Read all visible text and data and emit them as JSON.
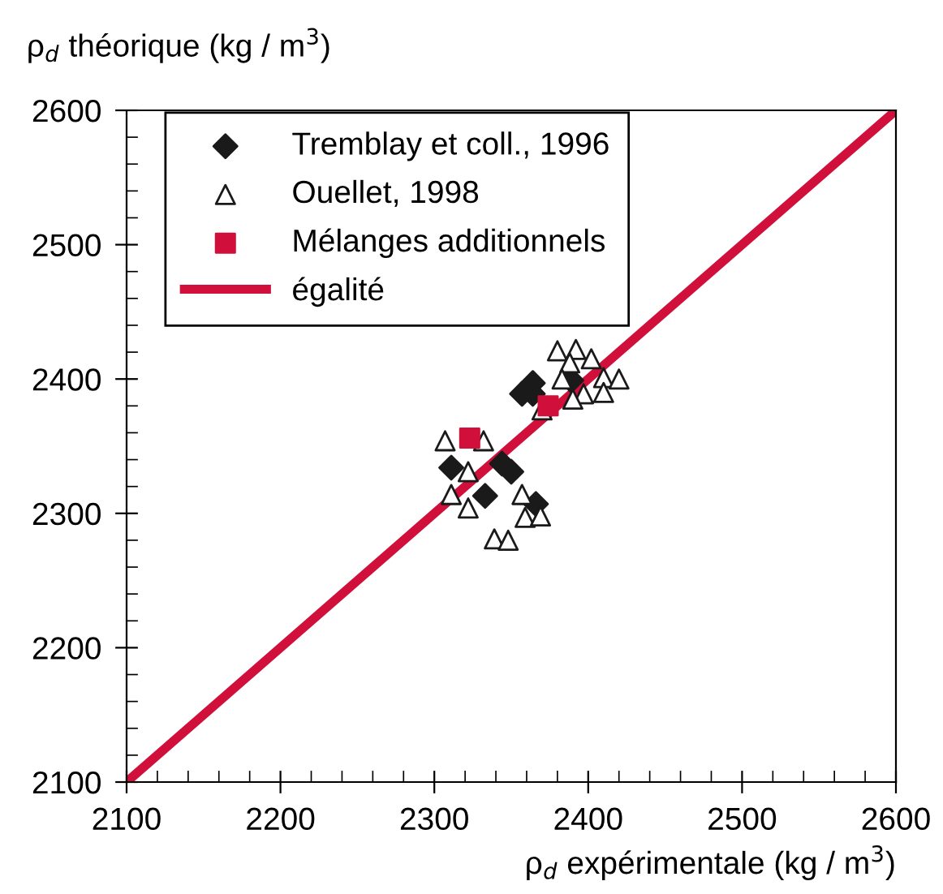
{
  "chart_data": {
    "type": "scatter",
    "xlabel": "ρ$_{d}$ expérimentale (kg / m$^{3}$)",
    "ylabel": "ρ$_{d}$ théorique (kg / m$^{3}$)",
    "xlim": [
      2100,
      2600
    ],
    "ylim": [
      2100,
      2600
    ],
    "xticks": [
      2100,
      2200,
      2300,
      2400,
      2500,
      2600
    ],
    "yticks": [
      2100,
      2200,
      2300,
      2400,
      2500,
      2600
    ],
    "grid": false,
    "legend": "top left",
    "series": [
      {
        "name": "Tremblay et coll., 1996",
        "marker": "diamond",
        "color": "#1a1a1a",
        "x": [
          2357,
          2364,
          2364,
          2389,
          2311,
          2333,
          2344,
          2350,
          2366
        ],
        "values": [
          2389,
          2397,
          2389,
          2399,
          2334,
          2313,
          2337,
          2331,
          2307
        ]
      },
      {
        "name": "Ouellet, 1998",
        "marker": "triangle",
        "color": "#1a1a1a",
        "x": [
          2380,
          2392,
          2388,
          2402,
          2383,
          2410,
          2420,
          2397,
          2390,
          2410,
          2370,
          2307,
          2332,
          2322,
          2311,
          2322,
          2357,
          2359,
          2369,
          2339,
          2348
        ],
        "values": [
          2421,
          2422,
          2412,
          2415,
          2400,
          2401,
          2400,
          2389,
          2385,
          2390,
          2377,
          2354,
          2354,
          2331,
          2314,
          2304,
          2314,
          2297,
          2298,
          2281,
          2280
        ]
      },
      {
        "name": "Mélanges additionnels",
        "marker": "square",
        "color": "#d0103a",
        "x": [
          2323,
          2374
        ],
        "values": [
          2356,
          2380
        ]
      },
      {
        "name": "égalité",
        "type": "line",
        "marker": "none",
        "line_style": "solid",
        "color": "#d0103a",
        "x": [
          2100,
          2600
        ],
        "values": [
          2100,
          2600
        ]
      }
    ]
  }
}
